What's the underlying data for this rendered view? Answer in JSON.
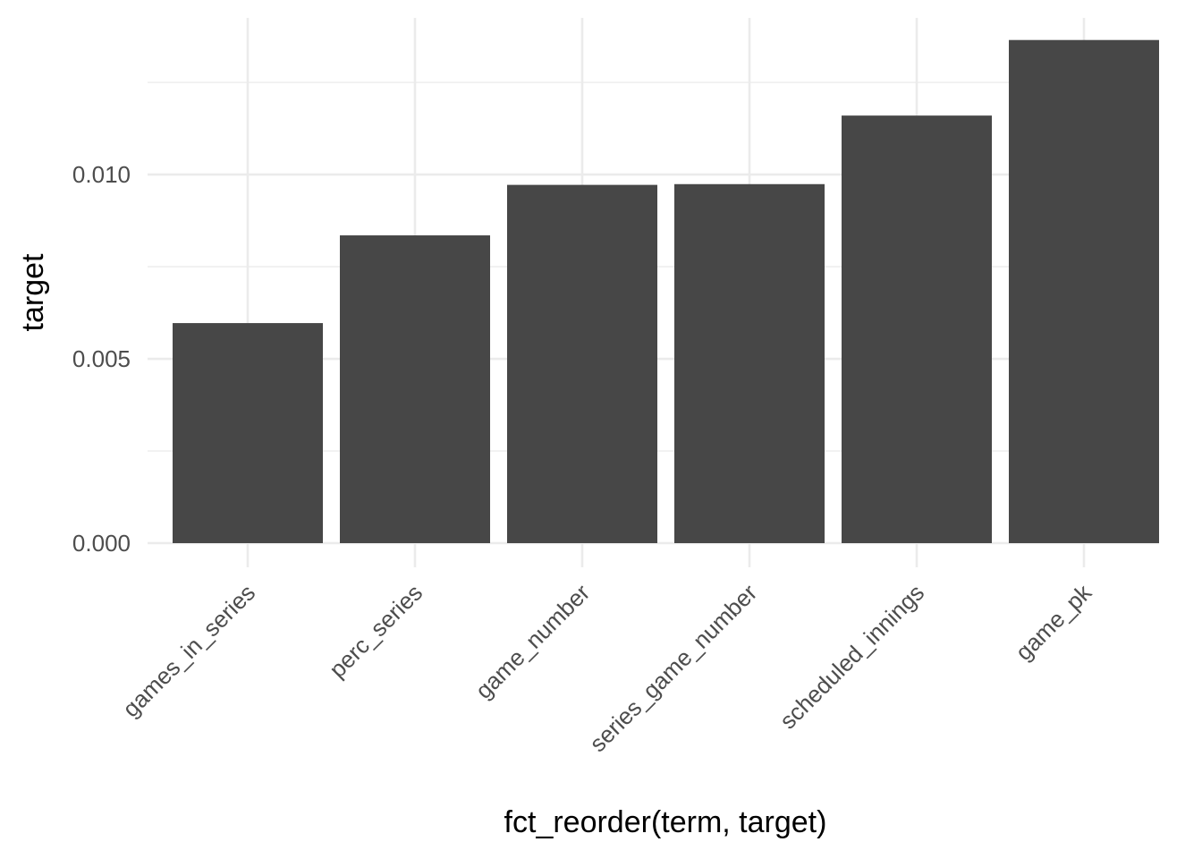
{
  "chart_data": {
    "type": "bar",
    "categories": [
      "games_in_series",
      "perc_series",
      "game_number",
      "series_game_number",
      "scheduled_innings",
      "game_pk"
    ],
    "values": [
      0.00597,
      0.00835,
      0.00972,
      0.00974,
      0.0116,
      0.01365
    ],
    "xlabel": "fct_reorder(term, target)",
    "ylabel": "target",
    "ylim": [
      0,
      0.01425
    ],
    "yticks": [
      0.0,
      0.005,
      0.01
    ],
    "ytick_labels": [
      "0.000",
      "0.005",
      "0.010"
    ],
    "grid": true,
    "bar_color": "#474747",
    "grid_color": "#ebebeb"
  }
}
